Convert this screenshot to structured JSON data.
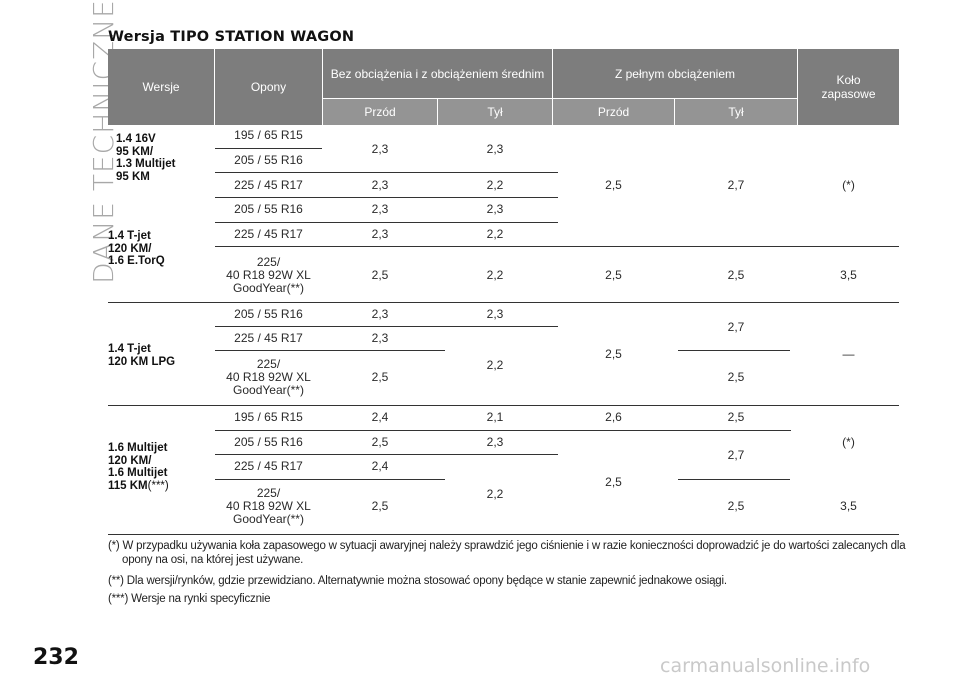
{
  "side_title": "DANE TECHNICZNE",
  "title": "Wersja TIPO STATION WAGON",
  "header": {
    "wersje": "Wersje",
    "opony": "Opony",
    "bez": "Bez obciążenia i z obciążeniem średnim",
    "pelny": "Z pełnym obciążeniem",
    "kolo": "Koło zapasowe",
    "przod1": "Przód",
    "tyl1": "Tył",
    "przod2": "Przód",
    "tyl2": "Tył"
  },
  "groups": [
    {
      "label": "1.4 16V\n95 KM/\n1.3 Multijet\n95 KM",
      "sup": ""
    },
    {
      "label": "1.4 T-jet\n120 KM/\n1.6 E.TorQ",
      "sup": ""
    },
    {
      "label": "1.4 T-jet\n120 KM LPG",
      "sup": ""
    },
    {
      "label": "1.6 Multijet\n120 KM/\n1.6 Multijet\n115 KM",
      "sup": "(***)"
    }
  ],
  "cells": {
    "g1_t1": "195 / 65 R15",
    "g1_t2": "205 / 55 R16",
    "g1_t3": "225 / 45 R17",
    "g1_p12": "2,3",
    "g1_y12": "2,3",
    "g1_p3": "2,3",
    "g1_y3": "2,2",
    "g12_pf": "2,5",
    "g12_yf": "2,7",
    "g12_spare": "(*)",
    "g2_t1": "205 / 55 R16",
    "g2_t2": "225 / 45 R17",
    "g2_t3": "225/\n40 R18 92W XL\nGoodYear",
    "g2_t3_sup": "(**)",
    "g2_p1": "2,3",
    "g2_y1": "2,3",
    "g2_p2": "2,3",
    "g2_y2": "2,2",
    "g2_p3": "2,5",
    "g2_y3": "2,2",
    "g2_pf3": "2,5",
    "g2_yf3": "2,5",
    "g2_spare3": "3,5",
    "g3_t1": "205 / 55 R16",
    "g3_t2": "225 / 45 R17",
    "g3_t3": "225/\n40 R18 92W XL\nGoodYear",
    "g3_t3_sup": "(**)",
    "g3_p1": "2,3",
    "g3_y1": "2,3",
    "g3_p2": "2,3",
    "g3_y23": "2,2",
    "g3_p3": "2,5",
    "g3_pf": "2,5",
    "g3_yf12": "2,7",
    "g3_yf3": "2,5",
    "g3_spare": "—",
    "g4_t1": "195 / 65 R15",
    "g4_t2": "205 / 55 R16",
    "g4_t3": "225 / 45 R17",
    "g4_t4": "225/\n40 R18 92W XL\nGoodYear",
    "g4_t4_sup": "(**)",
    "g4_p1": "2,4",
    "g4_y1": "2,1",
    "g4_pf1": "2,6",
    "g4_yf1": "2,5",
    "g4_p2": "2,5",
    "g4_y2": "2,3",
    "g4_p3": "2,4",
    "g4_y34": "2,2",
    "g4_p4": "2,5",
    "g4_pf234": "2,5",
    "g4_yf23": "2,7",
    "g4_yf4": "2,5",
    "g4_spare123": "(*)",
    "g4_spare4": "3,5"
  },
  "footnotes": [
    "(*) W przypadku używania koła zapasowego w sytuacji awaryjnej należy sprawdzić jego ciśnienie i w razie konieczności doprowadzić je do wartości zalecanych dla opony na osi, na której jest używane.",
    "(**) Dla wersji/rynków, gdzie przewidziano. Alternatywnie można stosować opony będące w stanie zapewnić jednakowe osiągi.",
    "(***) Wersje na rynki specyficznie"
  ],
  "page_number": "232",
  "watermark": "carmanualsonline.info"
}
